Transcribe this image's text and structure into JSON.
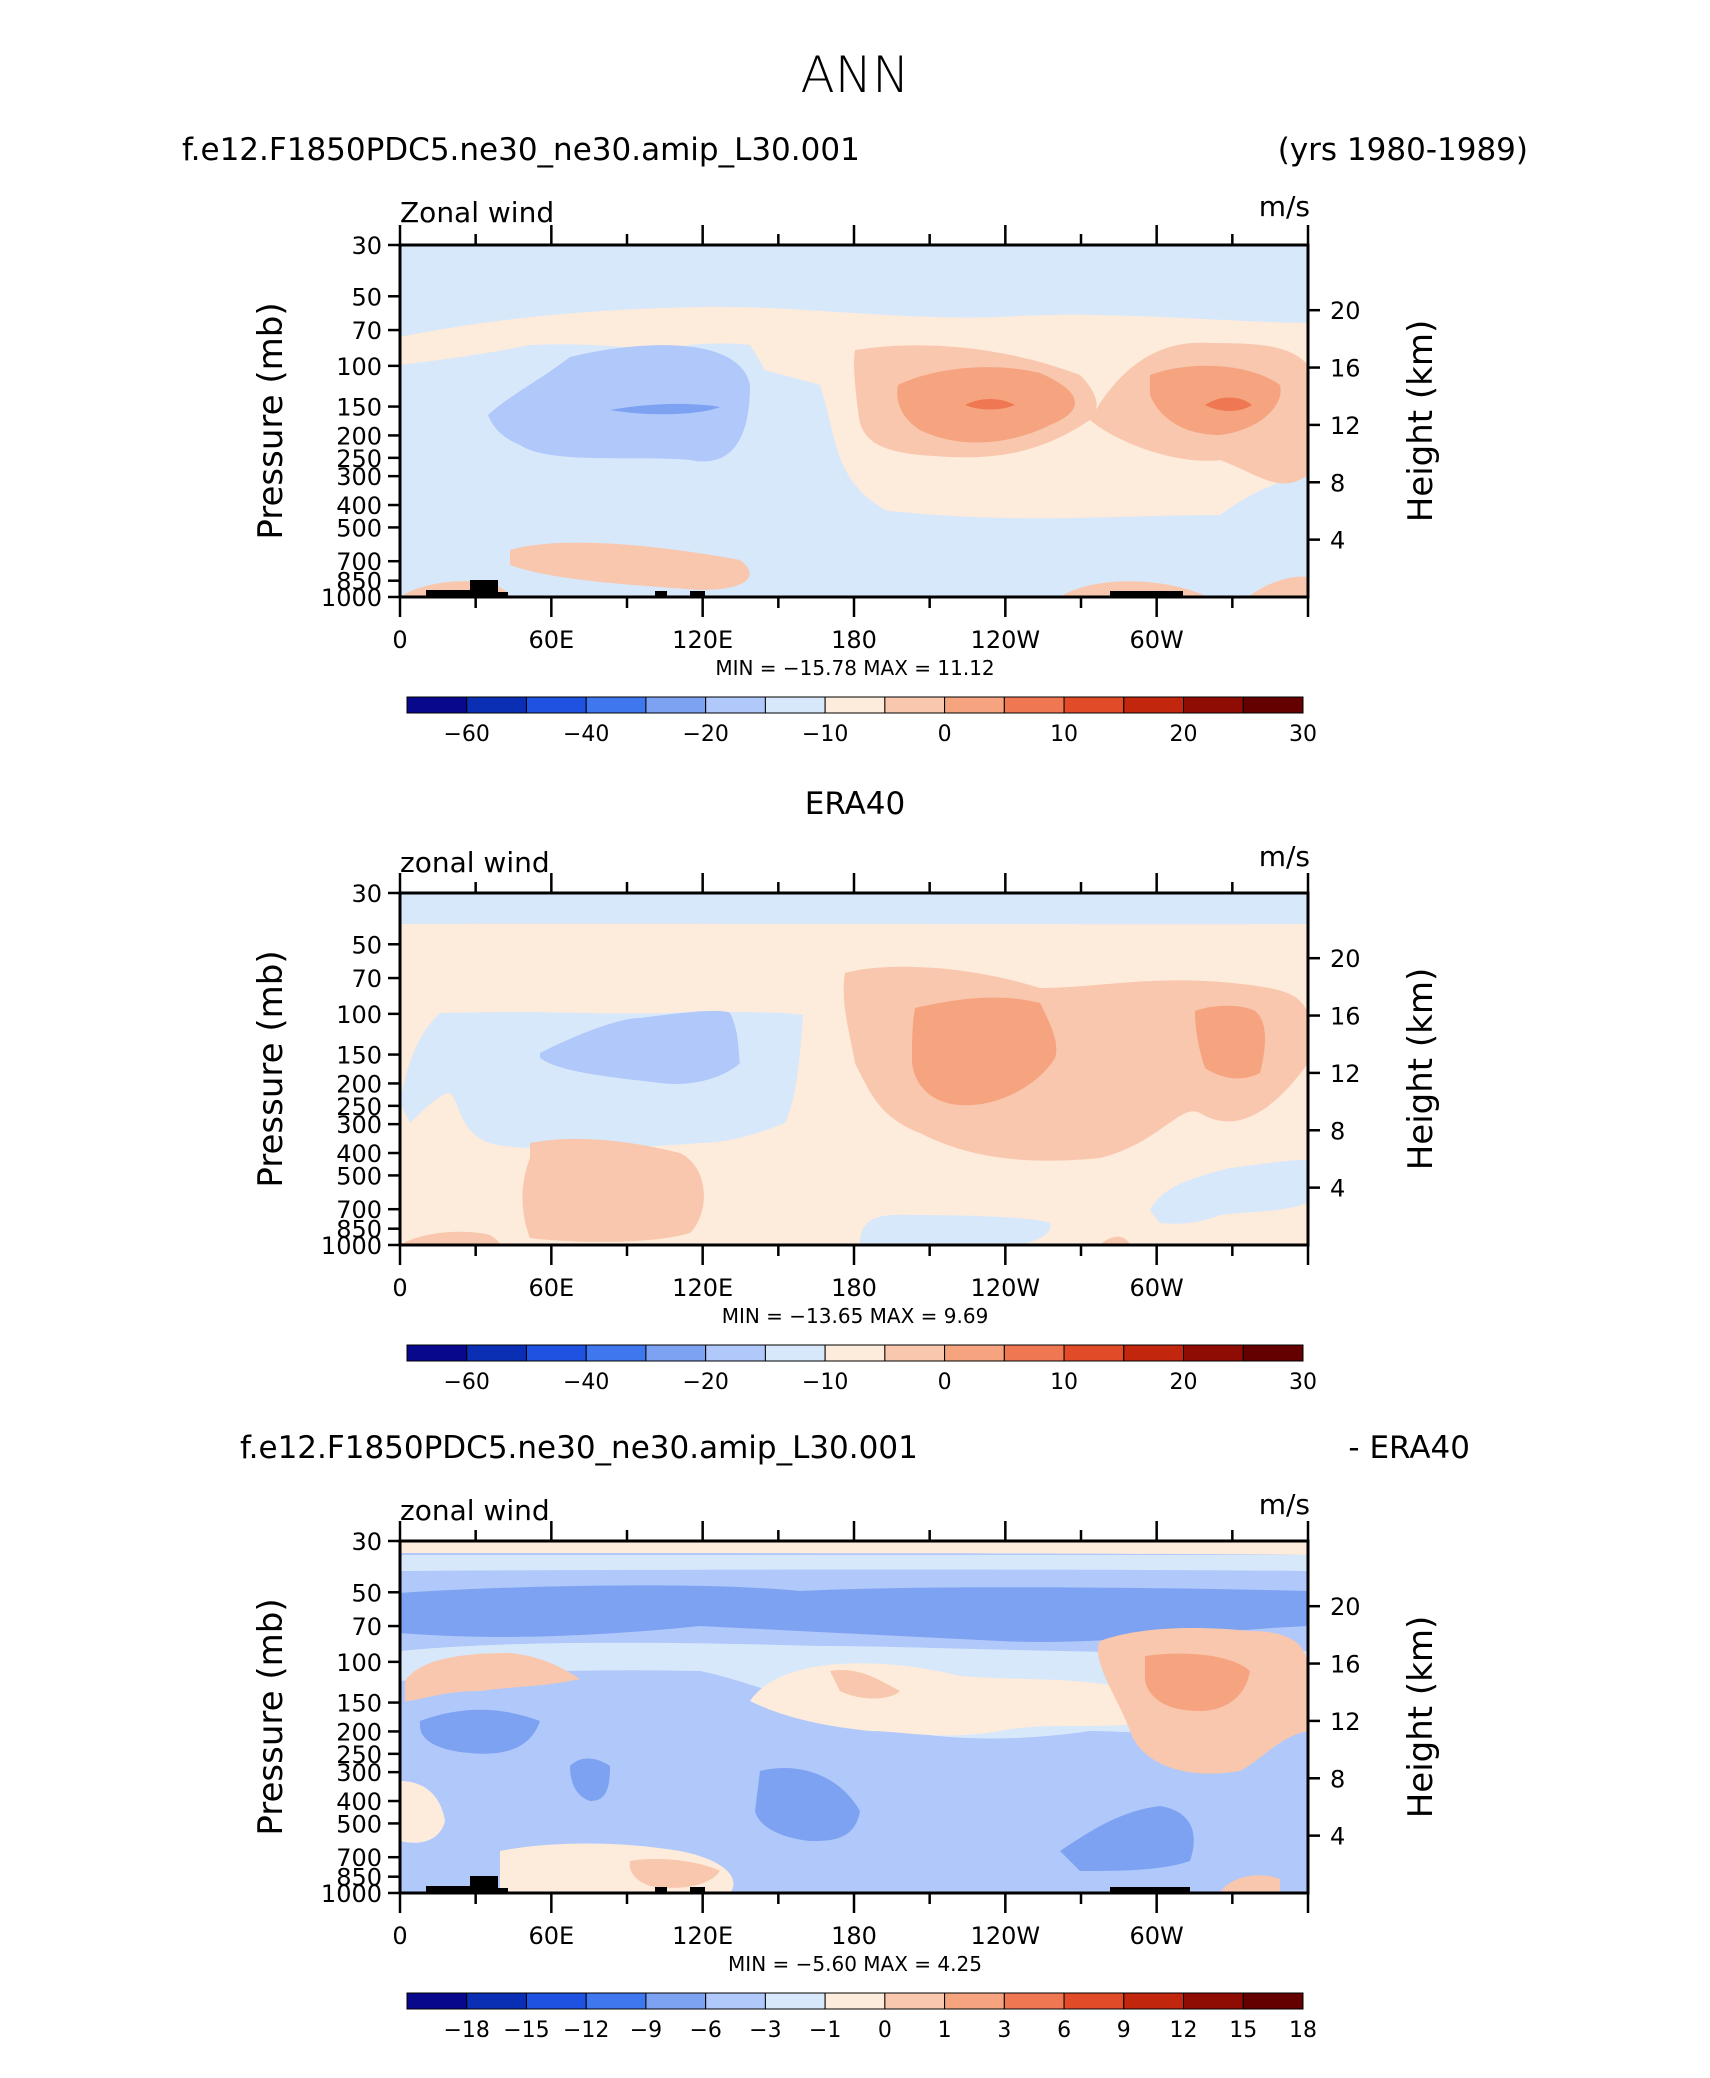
{
  "main_title": "ANN",
  "panels": [
    {
      "title_left": "f.e12.F1850PDC5.ne30_ne30.amip_L30.001",
      "title_right": "(yrs 1980-1989)",
      "title_center": "",
      "var_label": "Zonal wind",
      "units": "m/s",
      "minmax": "MIN = −15.78   MAX =   11.12",
      "colorbar_labels": [
        "−60",
        "−40",
        "−20",
        "−10",
        "0",
        "10",
        "20",
        "30"
      ]
    },
    {
      "title_left": "",
      "title_right": "",
      "title_center": "ERA40",
      "var_label": "zonal wind",
      "units": "m/s",
      "minmax": "MIN = −13.65   MAX =    9.69",
      "colorbar_labels": [
        "−60",
        "−40",
        "−20",
        "−10",
        "0",
        "10",
        "20",
        "30"
      ]
    },
    {
      "title_left": "f.e12.F1850PDC5.ne30_ne30.amip_L30.001",
      "title_right": "- ERA40",
      "title_center": "",
      "var_label": "zonal wind",
      "units": "m/s",
      "minmax": "MIN =    −5.60   MAX =    4.25",
      "colorbar_labels": [
        "−18",
        "−15",
        "−12",
        "−9",
        "−6",
        "−3",
        "−1",
        "0",
        "1",
        "3",
        "6",
        "9",
        "12",
        "15",
        "18"
      ]
    }
  ],
  "axes": {
    "ylabel_left": "Pressure  (mb)",
    "ylabel_right": "Height  (km)",
    "pressure_ticks": [
      "30",
      "50",
      "70",
      "100",
      "150",
      "200",
      "250",
      "300",
      "400",
      "500",
      "700",
      "850",
      "1000"
    ],
    "height_ticks": [
      "20",
      "16",
      "12",
      "8",
      "4"
    ],
    "lon_ticks": [
      "0",
      "60E",
      "120E",
      "180",
      "120W",
      "60W"
    ]
  },
  "colors": {
    "colorbar_big": [
      "#08088c",
      "#0a2fb5",
      "#1f52e0",
      "#3f78ee",
      "#7ea2f2",
      "#b0c8fa",
      "#d8e8fb",
      "#fdebdb",
      "#f9c7ad",
      "#f5a47f",
      "#ef7852",
      "#e24b27",
      "#c2260d",
      "#8f0c04",
      "#650000"
    ],
    "colorbar_diff": [
      "#08088c",
      "#0a2fb5",
      "#1f52e0",
      "#3f78ee",
      "#7ea2f2",
      "#b0c8fa",
      "#d8e8fb",
      "#fdebdb",
      "#f9c7ad",
      "#f5a47f",
      "#ef7852",
      "#e24b27",
      "#c2260d",
      "#8f0c04",
      "#650000"
    ],
    "blue_light": "#d8e8fb",
    "blue_mid": "#b0c8fa",
    "blue_dark": "#7ea2f2",
    "blue_deep": "#4f7de8",
    "red_light": "#fdebdb",
    "red_mid": "#f9c7ad",
    "red_dark": "#f5a47f",
    "red_deep": "#ef7852",
    "red_hot": "#e8502d"
  },
  "chart_data": [
    {
      "type": "heatmap",
      "title": "f.e12.F1850PDC5.ne30_ne30.amip_L30.001",
      "subtitle": "(yrs 1980-1989)",
      "variable": "Zonal wind",
      "units": "m/s",
      "x": [
        "0",
        "60E",
        "120E",
        "180",
        "120W",
        "60W"
      ],
      "y_pressure_mb": [
        30,
        50,
        70,
        100,
        150,
        200,
        250,
        300,
        400,
        500,
        700,
        850,
        1000
      ],
      "min": -15.78,
      "max": 11.12,
      "colorbar_levels": [
        -60,
        -40,
        -20,
        -10,
        0,
        10,
        20,
        30
      ],
      "maxima": [
        {
          "lon": "150W",
          "pressure_mb": 150,
          "value": 11.12
        },
        {
          "lon": "45W",
          "pressure_mb": 150,
          "value": 10
        }
      ],
      "minima": [
        {
          "lon": "90E",
          "pressure_mb": 150,
          "value": -15.78
        }
      ]
    },
    {
      "type": "heatmap",
      "title": "ERA40",
      "variable": "zonal wind",
      "units": "m/s",
      "x": [
        "0",
        "60E",
        "120E",
        "180",
        "120W",
        "60W"
      ],
      "y_pressure_mb": [
        30,
        50,
        70,
        100,
        150,
        200,
        250,
        300,
        400,
        500,
        700,
        850,
        1000
      ],
      "min": -13.65,
      "max": 9.69,
      "colorbar_levels": [
        -60,
        -40,
        -20,
        -10,
        0,
        10,
        20,
        30
      ]
    },
    {
      "type": "heatmap",
      "title": "f.e12.F1850PDC5.ne30_ne30.amip_L30.001",
      "subtitle": "- ERA40",
      "variable": "zonal wind",
      "units": "m/s",
      "x": [
        "0",
        "60E",
        "120E",
        "180",
        "120W",
        "60W"
      ],
      "y_pressure_mb": [
        30,
        50,
        70,
        100,
        150,
        200,
        250,
        300,
        400,
        500,
        700,
        850,
        1000
      ],
      "min": -5.6,
      "max": 4.25,
      "colorbar_levels": [
        -18,
        -15,
        -12,
        -9,
        -6,
        -3,
        -1,
        0,
        1,
        3,
        6,
        9,
        12,
        15,
        18
      ]
    }
  ]
}
